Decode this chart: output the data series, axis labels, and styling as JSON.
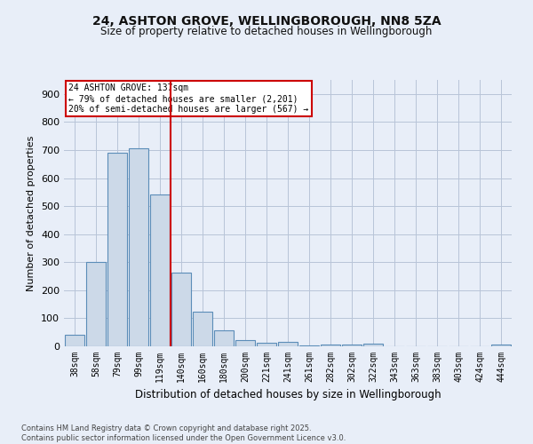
{
  "title1": "24, ASHTON GROVE, WELLINGBOROUGH, NN8 5ZA",
  "title2": "Size of property relative to detached houses in Wellingborough",
  "xlabel": "Distribution of detached houses by size in Wellingborough",
  "ylabel": "Number of detached properties",
  "categories": [
    "38sqm",
    "58sqm",
    "79sqm",
    "99sqm",
    "119sqm",
    "140sqm",
    "160sqm",
    "180sqm",
    "200sqm",
    "221sqm",
    "241sqm",
    "261sqm",
    "282sqm",
    "302sqm",
    "322sqm",
    "343sqm",
    "363sqm",
    "383sqm",
    "403sqm",
    "424sqm",
    "444sqm"
  ],
  "values": [
    42,
    300,
    690,
    705,
    540,
    262,
    122,
    58,
    22,
    12,
    15,
    3,
    6,
    5,
    8,
    0,
    0,
    0,
    0,
    0,
    5
  ],
  "bar_color": "#ccd9e8",
  "bar_edge_color": "#5b8db8",
  "background_color": "#e8eef8",
  "grid_color": "#b8c4d8",
  "red_line_x": 4.5,
  "annotation_title": "24 ASHTON GROVE: 137sqm",
  "annotation_line1": "← 79% of detached houses are smaller (2,201)",
  "annotation_line2": "20% of semi-detached houses are larger (567) →",
  "annotation_box_color": "#ffffff",
  "annotation_box_edge_color": "#cc0000",
  "red_line_color": "#cc0000",
  "footnote1": "Contains HM Land Registry data © Crown copyright and database right 2025.",
  "footnote2": "Contains public sector information licensed under the Open Government Licence v3.0.",
  "ylim": [
    0,
    950
  ],
  "yticks": [
    0,
    100,
    200,
    300,
    400,
    500,
    600,
    700,
    800,
    900
  ]
}
